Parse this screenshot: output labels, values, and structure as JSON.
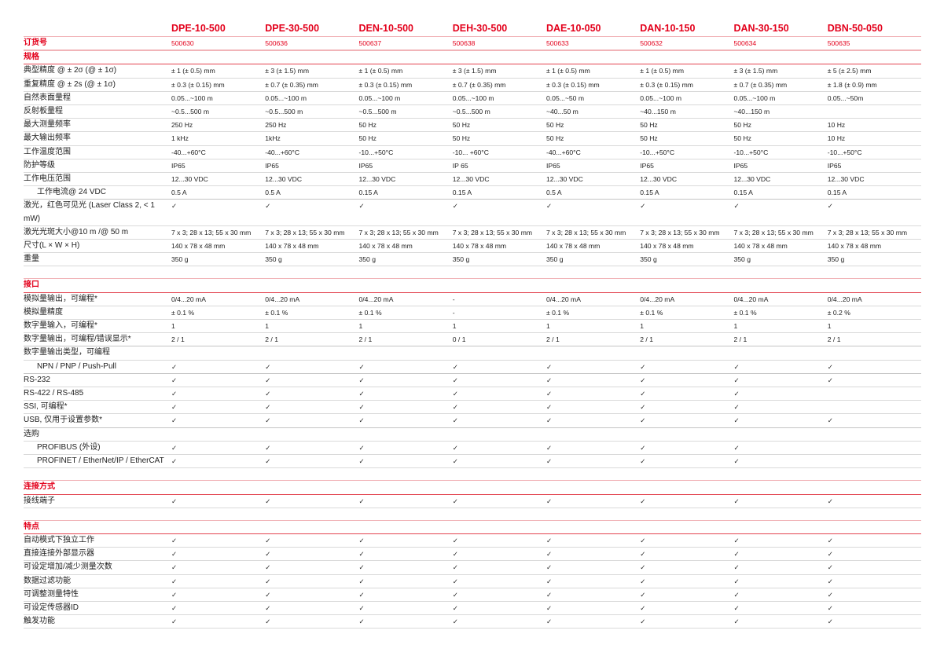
{
  "accent_color": "#e3001b",
  "check_icon": "check-mark",
  "products": [
    "DPE-10-500",
    "DPE-30-500",
    "DEN-10-500",
    "DEH-30-500",
    "DAE-10-050",
    "DAN-10-150",
    "DAN-30-150",
    "DBN-50-050"
  ],
  "order_number": {
    "label": "订货号",
    "values": [
      "500630",
      "500636",
      "500637",
      "500638",
      "500633",
      "500632",
      "500634",
      "500635"
    ]
  },
  "sections": [
    {
      "title": "规格",
      "rows": [
        {
          "label": "典型精度 @ ± 2σ (@ ± 1σ)",
          "values": [
            "± 1 (± 0.5) mm",
            "± 3 (± 1.5) mm",
            "± 1 (± 0.5) mm",
            "± 3 (± 1.5) mm",
            "± 1 (± 0.5) mm",
            "± 1 (± 0.5) mm",
            "± 3 (± 1.5) mm",
            "± 5 (± 2.5) mm"
          ]
        },
        {
          "label": "重复精度 @ ± 2s (@ ± 1σ)",
          "values": [
            "± 0.3 (± 0.15) mm",
            "± 0.7 (± 0.35) mm",
            "± 0.3 (± 0.15) mm",
            "± 0.7 (± 0.35) mm",
            "± 0.3 (± 0.15) mm",
            "± 0.3 (± 0.15) mm",
            "± 0.7 (± 0.35) mm",
            "± 1.8 (± 0.9) mm"
          ]
        },
        {
          "label": "自然表面量程",
          "values": [
            "0.05...~100 m",
            "0.05...~100 m",
            "0.05...~100 m",
            "0.05...~100 m",
            "0.05...~50 m",
            "0.05...~100 m",
            "0.05...~100 m",
            "0.05...~50m"
          ]
        },
        {
          "label": "反射板量程",
          "values": [
            " ~0.5...500 m",
            " ~0.5...500 m",
            " ~0.5...500 m",
            " ~0.5...500 m",
            "~40...50 m",
            "~40...150 m",
            "~40...150 m",
            ""
          ]
        },
        {
          "label": "最大测量频率",
          "values": [
            "250 Hz",
            "250 Hz",
            "50 Hz",
            "50 Hz",
            "50 Hz",
            "50 Hz",
            "50 Hz",
            "10 Hz"
          ]
        },
        {
          "label": "最大输出频率",
          "values": [
            "1 kHz",
            "1kHz",
            "50 Hz",
            "50 Hz",
            "50 Hz",
            "50 Hz",
            "50 Hz",
            "10 Hz"
          ]
        },
        {
          "label": "工作温度范围",
          "values": [
            "-40...+60°C",
            "-40...+60°C",
            "-10...+50°C",
            "-10... +60°C",
            "-40...+60°C",
            "-10...+50°C",
            "-10...+50°C",
            "-10...+50°C"
          ]
        },
        {
          "label": "防护等级",
          "values": [
            "IP65",
            "IP65",
            "IP65",
            "IP 65",
            "IP65",
            "IP65",
            "IP65",
            "IP65"
          ]
        },
        {
          "label": "工作电压范围",
          "values": [
            "12...30 VDC",
            "12...30 VDC",
            "12...30 VDC",
            "12...30 VDC",
            "12...30 VDC",
            "12...30 VDC",
            "12...30 VDC",
            "12...30 VDC"
          ]
        },
        {
          "label": "工作电流@ 24 VDC",
          "indent": true,
          "thick": true,
          "values": [
            "0.5 A",
            "0.5 A",
            "0.15 A",
            "0.15 A",
            "0.5 A",
            "0.15 A",
            "0.15 A",
            "0.15 A"
          ]
        },
        {
          "label": "激光，红色可见光 (Laser Class 2, < 1 mW)",
          "values": [
            "✓",
            "✓",
            "✓",
            "✓",
            "✓",
            "✓",
            "✓",
            "✓"
          ]
        },
        {
          "label": "激光光斑大小@10 m /@ 50 m",
          "values": [
            "7 x 3; 28 x 13; 55 x 30 mm",
            "7 x 3; 28 x 13; 55 x 30 mm",
            "7 x 3; 28 x 13; 55 x 30 mm",
            "7 x 3; 28 x 13; 55 x 30 mm",
            "7 x 3; 28 x 13; 55 x 30 mm",
            "7 x 3; 28 x 13; 55 x 30 mm",
            "7 x 3; 28 x 13; 55 x 30 mm",
            "7 x 3; 28 x 13; 55 x 30 mm"
          ]
        },
        {
          "label": "尺寸(L × W × H)",
          "values": [
            "140 x 78 x 48 mm",
            "140 x 78 x 48 mm",
            "140 x 78 x 48 mm",
            "140 x 78 x 48 mm",
            "140 x 78 x 48 mm",
            "140 x 78 x 48 mm",
            "140 x 78 x 48 mm",
            "140 x 78 x 48 mm"
          ]
        },
        {
          "label": "重量",
          "values": [
            "350 g",
            "350 g",
            "350 g",
            "350 g",
            "350 g",
            "350 g",
            "350 g",
            "350 g"
          ]
        }
      ]
    },
    {
      "title": "接口",
      "rows": [
        {
          "label": "模拟量输出，可编程*",
          "values": [
            "0/4...20 mA",
            "0/4...20 mA",
            "0/4...20 mA",
            "-",
            "0/4...20 mA",
            "0/4...20 mA",
            "0/4...20 mA",
            "0/4...20 mA"
          ]
        },
        {
          "label": "模拟量精度",
          "values": [
            "± 0.1 %",
            "± 0.1 %",
            "± 0.1 %",
            "-",
            "± 0.1 %",
            "± 0.1 %",
            "± 0.1 %",
            "± 0.2 %"
          ]
        },
        {
          "label": "数字量输入，可编程*",
          "values": [
            "1",
            "1",
            "1",
            "1",
            "1",
            "1",
            "1",
            "1"
          ]
        },
        {
          "label": "数字量输出，可编程/错误显示*",
          "thick": true,
          "values": [
            "2 / 1",
            "2 / 1",
            "2 / 1",
            "0 / 1",
            "2 / 1",
            "2 / 1",
            "2 / 1",
            "2 / 1"
          ]
        },
        {
          "label": "数字量输出类型，可编程",
          "values": [
            "",
            "",
            "",
            "",
            "",
            "",
            "",
            ""
          ]
        },
        {
          "label": "NPN / PNP / Push-Pull",
          "indent": true,
          "thick": true,
          "values": [
            "✓",
            "✓",
            "✓",
            "✓",
            "✓",
            "✓",
            "✓",
            "✓"
          ]
        },
        {
          "label": "RS-232",
          "values": [
            "✓",
            "✓",
            "✓",
            "✓",
            "✓",
            "✓",
            "✓",
            "✓"
          ]
        },
        {
          "label": "RS-422 / RS-485",
          "values": [
            "✓",
            "✓",
            "✓",
            "✓",
            "✓",
            "✓",
            "✓",
            ""
          ]
        },
        {
          "label": "SSI, 可编程*",
          "values": [
            "✓",
            "✓",
            "✓",
            "✓",
            "✓",
            "✓",
            "✓",
            ""
          ]
        },
        {
          "label": "USB, 仅用于设置参数*",
          "thick": true,
          "values": [
            "✓",
            "✓",
            "✓",
            "✓",
            "✓",
            "✓",
            "✓",
            "✓"
          ]
        },
        {
          "label": "选购",
          "values": [
            "",
            "",
            "",
            "",
            "",
            "",
            "",
            ""
          ]
        },
        {
          "label": "PROFIBUS (外设)",
          "indent": true,
          "values": [
            "✓",
            "✓",
            "✓",
            "✓",
            "✓",
            "✓",
            "✓",
            ""
          ]
        },
        {
          "label": "PROFINET / EtherNet/IP / EtherCAT",
          "indent": true,
          "values": [
            "✓",
            "✓",
            "✓",
            "✓",
            "✓",
            "✓",
            "✓",
            ""
          ]
        }
      ]
    },
    {
      "title": "连接方式",
      "rows": [
        {
          "label": "接线端子",
          "values": [
            "✓",
            "✓",
            "✓",
            "✓",
            "✓",
            "✓",
            "✓",
            "✓"
          ]
        }
      ]
    },
    {
      "title": "特点",
      "rows": [
        {
          "label": "自动模式下独立工作",
          "values": [
            "✓",
            "✓",
            "✓",
            "✓",
            "✓",
            "✓",
            "✓",
            "✓"
          ]
        },
        {
          "label": "直接连接外部显示器",
          "values": [
            "✓",
            "✓",
            "✓",
            "✓",
            "✓",
            "✓",
            "✓",
            "✓"
          ]
        },
        {
          "label": "可设定增加/减少测量次数",
          "values": [
            "✓",
            "✓",
            "✓",
            "✓",
            "✓",
            "✓",
            "✓",
            "✓"
          ]
        },
        {
          "label": "数据过滤功能",
          "values": [
            "✓",
            "✓",
            "✓",
            "✓",
            "✓",
            "✓",
            "✓",
            "✓"
          ]
        },
        {
          "label": "可调整测量特性",
          "values": [
            "✓",
            "✓",
            "✓",
            "✓",
            "✓",
            "✓",
            "✓",
            "✓"
          ]
        },
        {
          "label": "可设定传感器ID",
          "values": [
            "✓",
            "✓",
            "✓",
            "✓",
            "✓",
            "✓",
            "✓",
            "✓"
          ]
        },
        {
          "label": "触发功能",
          "values": [
            "✓",
            "✓",
            "✓",
            "✓",
            "✓",
            "✓",
            "✓",
            "✓"
          ]
        }
      ]
    }
  ]
}
